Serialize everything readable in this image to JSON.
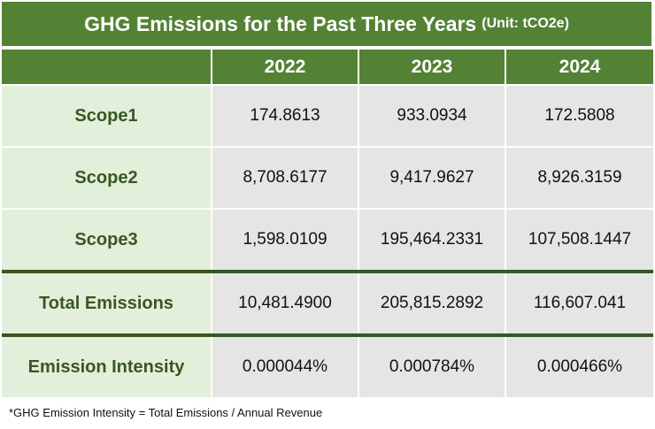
{
  "title": {
    "main": "GHG Emissions for the Past Three Years",
    "unit": "(Unit: tCO2e)"
  },
  "table": {
    "columns": [
      "",
      "2022",
      "2023",
      "2024"
    ],
    "rows": [
      {
        "label": "Scope1",
        "values": [
          "174.8613",
          "933.0934",
          "172.5808"
        ]
      },
      {
        "label": "Scope2",
        "values": [
          "8,708.6177",
          "9,417.9627",
          "8,926.3159"
        ]
      },
      {
        "label": "Scope3",
        "values": [
          "1,598.0109",
          "195,464.2331",
          "107,508.1447"
        ]
      },
      {
        "label": "Total Emissions",
        "values": [
          "10,481.4900",
          "205,815.2892",
          "116,607.041"
        ]
      },
      {
        "label": "Emission Intensity",
        "values": [
          "0.000044%",
          "0.000784%",
          "0.000466%"
        ]
      }
    ]
  },
  "footnote": "*GHG Emission Intensity = Total Emissions / Annual Revenue",
  "colors": {
    "header_green": "#548235",
    "label_bg": "#e2efda",
    "label_text": "#385723",
    "cell_bg": "#e5e5e5",
    "separator": "#375623"
  }
}
